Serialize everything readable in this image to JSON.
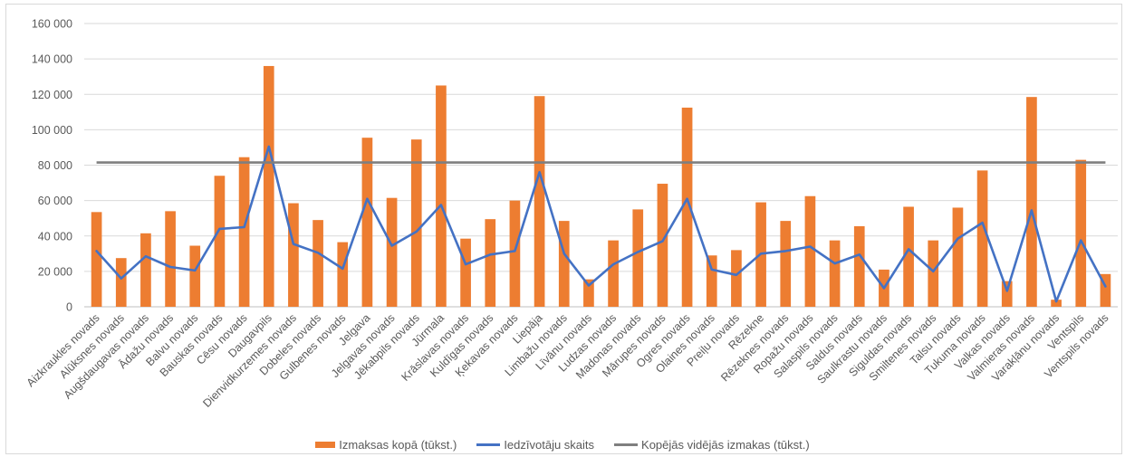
{
  "chart_data": {
    "type": "bar",
    "categories": [
      "Aizkraukles novads",
      "Alūksnes novads",
      "Augšdaugavas novads",
      "Ādažu novads",
      "Balvu novads",
      "Bauskas novads",
      "Cēsu novads",
      "Daugavpils",
      "Dienvidkurzemes novads",
      "Dobeles novads",
      "Gulbenes novads",
      "Jelgava",
      "Jelgavas novads",
      "Jēkabpils novads",
      "Jūrmala",
      "Krāslavas novads",
      "Kuldīgas novads",
      "Ķekavas novads",
      "Liepāja",
      "Limbažu novads",
      "Līvānu novads",
      "Ludzas novads",
      "Madonas novads",
      "Mārupes novads",
      "Ogres novads",
      "Olaines novads",
      "Preiļu novads",
      "Rēzekne",
      "Rēzeknes novads",
      "Ropažu novads",
      "Salaspils novads",
      "Saldus novads",
      "Saulkrastu novads",
      "Siguldas novads",
      "Smiltenes novads",
      "Talsu novads",
      "Tukuma novads",
      "Valkas novads",
      "Valmieras novads",
      "Varakļānu novads",
      "Ventspils",
      "Ventspils novads"
    ],
    "series": [
      {
        "name": "Izmaksas kopā (tūkst.)",
        "type": "bar",
        "color": "#ED7D31",
        "values": [
          53500,
          27500,
          41500,
          54000,
          34500,
          74000,
          84500,
          136000,
          58500,
          49000,
          36500,
          95500,
          61500,
          94500,
          125000,
          38500,
          49500,
          60000,
          119000,
          48500,
          15500,
          37500,
          55000,
          69500,
          112500,
          29000,
          32000,
          59000,
          48500,
          62500,
          37500,
          45500,
          21000,
          56500,
          37500,
          56000,
          77000,
          14500,
          118500,
          4000,
          83000,
          18500
        ]
      },
      {
        "name": "Iedzīvotāju skaits",
        "type": "line",
        "color": "#4472C4",
        "values": [
          31500,
          16000,
          28500,
          22500,
          20500,
          44000,
          45000,
          90500,
          35500,
          30500,
          21500,
          61000,
          34500,
          42500,
          57500,
          24000,
          29500,
          31500,
          76000,
          30000,
          12000,
          24000,
          31000,
          37000,
          61000,
          21000,
          18000,
          30000,
          31500,
          34000,
          24500,
          29500,
          10500,
          32500,
          20000,
          38500,
          47500,
          9000,
          54500,
          3000,
          37500,
          11500
        ]
      },
      {
        "name": "Kopējās vidējās izmakas (tūkst.)",
        "type": "line",
        "color": "#7F7F7F",
        "value": 81500
      }
    ],
    "ylim": [
      0,
      160000
    ],
    "yticks": [
      "0",
      "20 000",
      "40 000",
      "60 000",
      "80 000",
      "100 000",
      "120 000",
      "140 000",
      "160 000"
    ],
    "grid": true,
    "legend_position": "bottom"
  }
}
